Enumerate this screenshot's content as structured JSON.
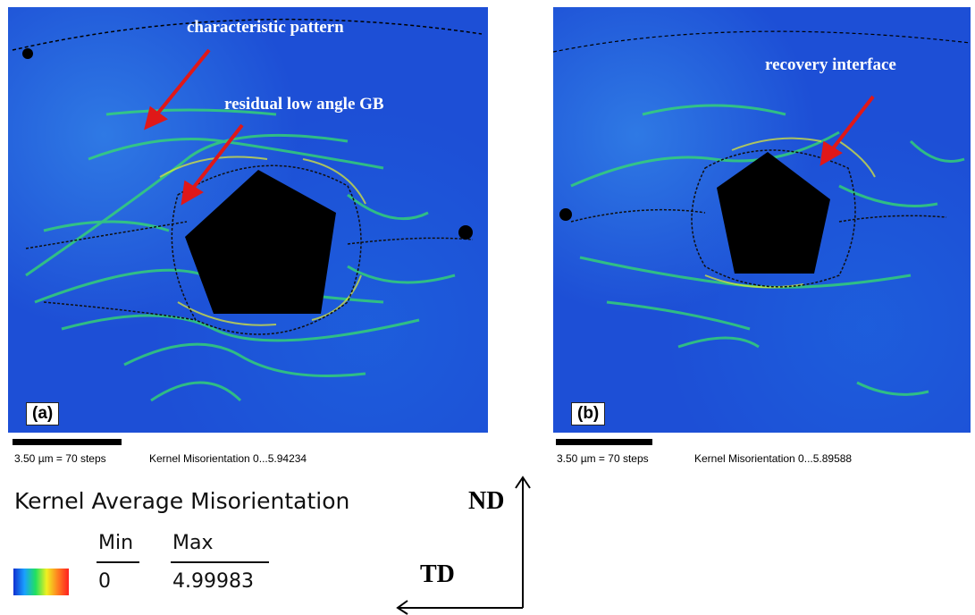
{
  "panels": [
    {
      "label": "(a)",
      "annotations": {
        "characteristic": "characteristic pattern",
        "residual": "residual low angle GB"
      },
      "scale_text": "3.50 µm = 70 steps",
      "kernel_text": "Kernel Misorientation 0...5.94234"
    },
    {
      "label": "(b)",
      "annotations": {
        "recovery": "recovery interface"
      },
      "scale_text": "3.50 µm = 70 steps",
      "kernel_text": "Kernel Misorientation 0...5.89588"
    }
  ],
  "legend": {
    "title": "Kernel Average Misorientation",
    "min_label": "Min",
    "max_label": "Max",
    "min_value": "0",
    "max_value": "4.99983",
    "colorbar_colors": [
      "#1030d0",
      "#1aa0ff",
      "#20e060",
      "#f0f020",
      "#ff8020",
      "#ff2020"
    ]
  },
  "axes": {
    "vertical": "ND",
    "horizontal": "TD"
  },
  "colors": {
    "background_map": "#1d4fd6",
    "strain_high": "#30e040",
    "arrow": "#e01818",
    "void": "#000000"
  }
}
